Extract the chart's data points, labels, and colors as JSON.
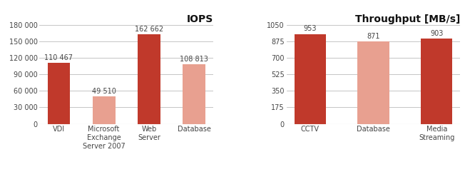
{
  "iops": {
    "title": "IOPS",
    "categories": [
      "VDI",
      "Microsoft\nExchange\nServer 2007",
      "Web\nServer",
      "Database"
    ],
    "values": [
      110467,
      49510,
      162662,
      108813
    ],
    "colors": [
      "#c0392b",
      "#e8a090",
      "#c0392b",
      "#e8a090"
    ],
    "bar_labels": [
      "110 467",
      "49 510",
      "162 662",
      "108 813"
    ],
    "ylim": [
      0,
      180000
    ],
    "yticks": [
      0,
      30000,
      60000,
      90000,
      120000,
      150000,
      180000
    ],
    "yticklabels": [
      "0",
      "30 000",
      "60 000",
      "90 000",
      "120 000",
      "150 000",
      "180 000"
    ]
  },
  "throughput": {
    "title": "Throughput [MB/s]",
    "categories": [
      "CCTV",
      "Database",
      "Media\nStreaming"
    ],
    "values": [
      953,
      871,
      903
    ],
    "colors": [
      "#c0392b",
      "#e8a090",
      "#c0392b"
    ],
    "bar_labels": [
      "953",
      "871",
      "903"
    ],
    "ylim": [
      0,
      1050
    ],
    "yticks": [
      0,
      175,
      350,
      525,
      700,
      875,
      1050
    ],
    "yticklabels": [
      "0",
      "175",
      "350",
      "525",
      "700",
      "875",
      "1050"
    ]
  },
  "bg_color": "#ffffff",
  "grid_color": "#bbbbbb",
  "title_fontsize": 10,
  "tick_fontsize": 7,
  "label_fontsize": 7,
  "bar_label_fontsize": 7
}
